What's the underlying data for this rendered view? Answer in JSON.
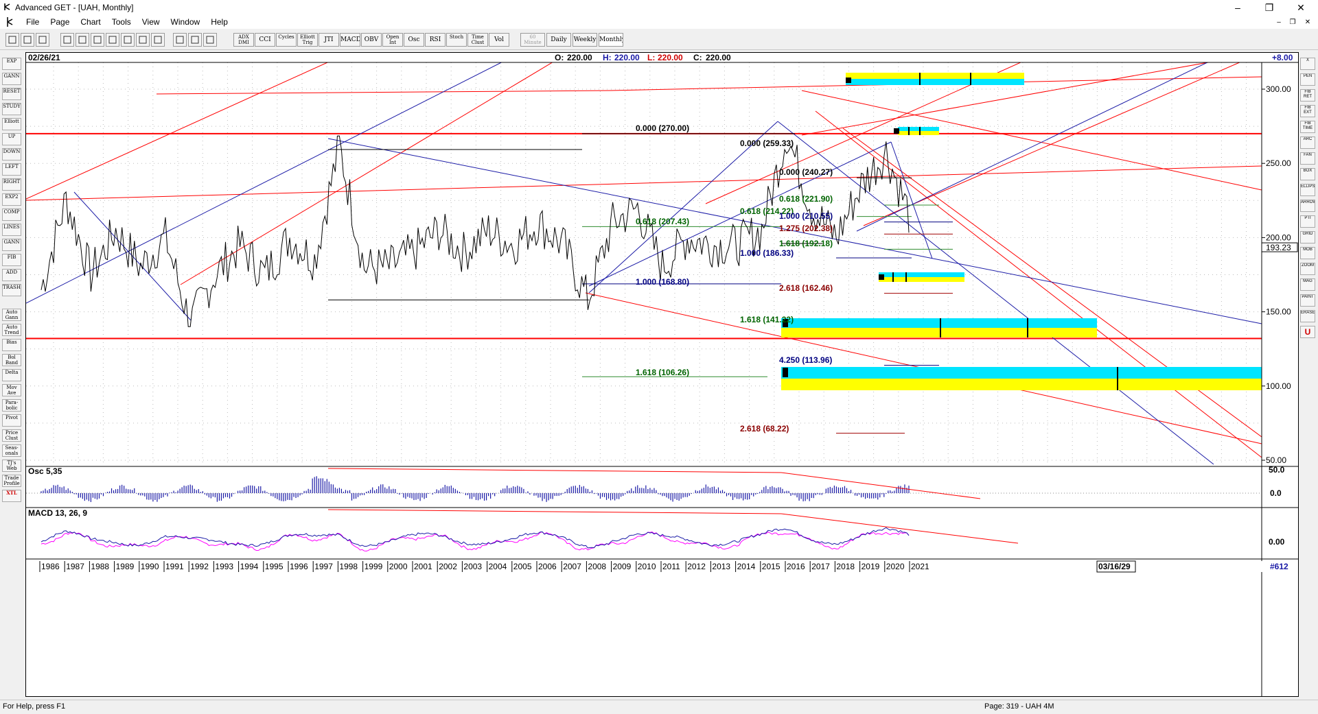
{
  "app": {
    "title": "Advanced GET - [UAH, Monthly]",
    "window_controls": {
      "minimize": "–",
      "restore": "❐",
      "close": "✕"
    },
    "doc_controls": {
      "minimize": "–",
      "restore": "❐",
      "close": "✕"
    }
  },
  "menu": [
    "File",
    "Page",
    "Chart",
    "Tools",
    "View",
    "Window",
    "Help"
  ],
  "toolbar": {
    "icon_buttons": [
      "cursor-icon",
      "quote-icon",
      "zoom-icon",
      "new-page-icon",
      "save-icon",
      "open-icon",
      "back-icon",
      "chart-icon",
      "grid-icon",
      "delete-icon",
      "print-icon",
      "help-icon",
      "context-help-icon"
    ],
    "study_buttons": [
      "ADX DMI",
      "CCI",
      "Cycles",
      "Elliott Trig",
      "JTI",
      "MACD",
      "OBV",
      "Open Int",
      "Osc",
      "RSI",
      "Stoch",
      "Time Clust",
      "Vol"
    ],
    "interval_buttons": [
      "60 Minute",
      "Daily",
      "Weekly",
      "Monthly"
    ]
  },
  "left_toolbar": [
    "EXP",
    "GANN",
    "RESET",
    "STUDY",
    "Elliott",
    "UP",
    "DOWN",
    "LEFT",
    "RIGHT",
    "EXP2",
    "COMP",
    "LINES",
    "GANN",
    "FIB",
    "ADD",
    "TRASH",
    "Auto Gann",
    "Auto Trend",
    "Bias",
    "Bol Band",
    "Delta",
    "Mov Ave",
    "Para-bolic",
    "Pivot",
    "Price Clust",
    "Seas-onals",
    "TJ's Web",
    "Trade Profile",
    "XTL"
  ],
  "right_toolbar": [
    "X",
    "PEN",
    "FIB RET",
    "FIB EXT",
    "FIB TIME",
    "ARC",
    "FAN",
    "BOX",
    "ELLIPS",
    "ARROW",
    "PTI",
    "GRID",
    "MOB",
    "ZOOM",
    "MAG",
    "PAINT",
    "ERASE",
    "U"
  ],
  "header": {
    "date": "02/26/21",
    "open_label": "O:",
    "open": "220.00",
    "high_label": "H:",
    "high": "220.00",
    "low_label": "L:",
    "low": "220.00",
    "close_label": "C:",
    "close": "220.00",
    "offset": "+8.00"
  },
  "price_axis": {
    "ticks": [
      "300.00",
      "250.00",
      "200.00",
      "150.00",
      "100.00",
      "50.00"
    ],
    "current": "193.23"
  },
  "fib_labels": [
    {
      "text": "0.000 (270.00)",
      "color": "#000000"
    },
    {
      "text": "0.000 (259.33)",
      "color": "#000000"
    },
    {
      "text": "0.000 (240.27)",
      "color": "#000000"
    },
    {
      "text": "0.618 (221.90)",
      "color": "#006400"
    },
    {
      "text": "0.618 (214.22)",
      "color": "#006400"
    },
    {
      "text": "1.000 (210.55)",
      "color": "#000080"
    },
    {
      "text": "0.618 (207.43)",
      "color": "#006400"
    },
    {
      "text": "1.275 (202.38)",
      "color": "#8b0000"
    },
    {
      "text": "1.618 (192.18)",
      "color": "#006400"
    },
    {
      "text": "1.000 (186.33)",
      "color": "#000080"
    },
    {
      "text": "1.000 (168.80)",
      "color": "#000080"
    },
    {
      "text": "2.618 (162.46)",
      "color": "#8b0000"
    },
    {
      "text": "1.618 (141.22)",
      "color": "#006400"
    },
    {
      "text": "4.250 (113.96)",
      "color": "#000080"
    },
    {
      "text": "1.618 (106.26)",
      "color": "#006400"
    },
    {
      "text": "2.618 (68.22)",
      "color": "#8b0000"
    }
  ],
  "osc_panel": {
    "label": "Osc 5,35",
    "ticks": [
      "50.0",
      "0.0"
    ]
  },
  "macd_panel": {
    "label": "MACD 13, 26, 9",
    "ticks": [
      "0.00"
    ]
  },
  "time_axis": {
    "years": [
      "1986",
      "1987",
      "1988",
      "1989",
      "1990",
      "1991",
      "1992",
      "1993",
      "1994",
      "1995",
      "1996",
      "1997",
      "1998",
      "1999",
      "2000",
      "2001",
      "2002",
      "2003",
      "2004",
      "2005",
      "2006",
      "2007",
      "2008",
      "2009",
      "2010",
      "2011",
      "2012",
      "2013",
      "2014",
      "2015",
      "2016",
      "2017",
      "2018",
      "2019",
      "2020",
      "2021"
    ],
    "future_date": "03/16/29",
    "bar_count": "#612"
  },
  "status": {
    "help": "For Help, press F1",
    "page": "Page: 319 - UAH 4M"
  },
  "colors": {
    "red": "#ff0000",
    "blue": "#1a1aa6",
    "cyan": "#00e5ff",
    "yellow": "#ffff00",
    "green": "#2e8b2e",
    "darkred": "#a00000",
    "navy": "#000080",
    "magenta": "#ff00ff"
  }
}
